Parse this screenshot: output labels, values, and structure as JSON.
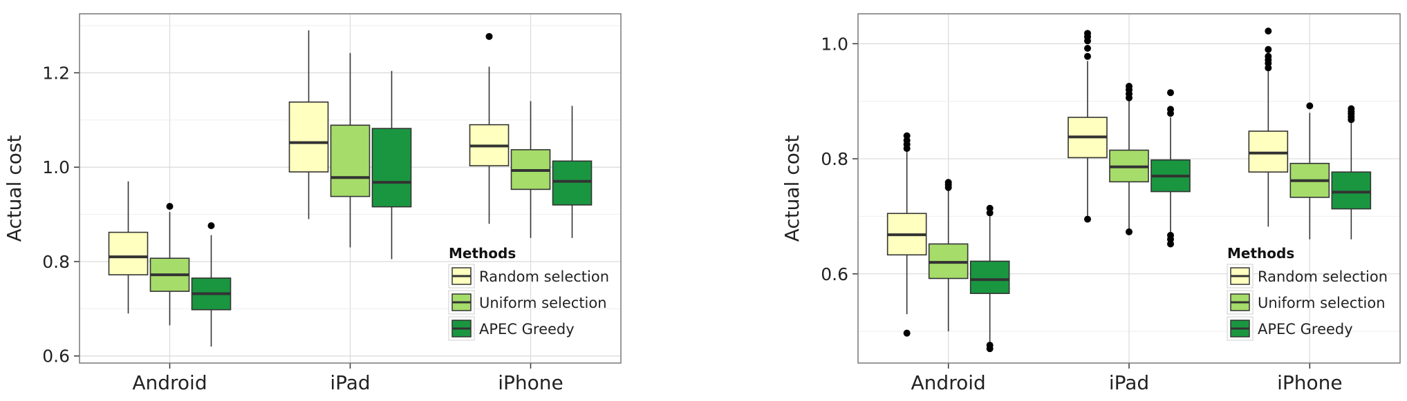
{
  "chart_data": [
    {
      "type": "boxplot",
      "ylabel": "Actual cost",
      "categories": [
        "Android",
        "iPad",
        "iPhone"
      ],
      "yticks": [
        0.6,
        0.8,
        1.0,
        1.2
      ],
      "ytick_labels": [
        "0.6",
        "0.8",
        "1.0",
        "1.2"
      ],
      "ylim": [
        0.585,
        1.325
      ],
      "grid": true,
      "legend": {
        "title": "Methods",
        "placement": "bottom-right"
      },
      "series": [
        {
          "name": "Random selection",
          "color": "#ffffbf",
          "boxes": [
            {
              "whisker_low": 0.69,
              "q1": 0.772,
              "median": 0.81,
              "q3": 0.862,
              "whisker_high": 0.97,
              "outliers": []
            },
            {
              "whisker_low": 0.89,
              "q1": 0.99,
              "median": 1.052,
              "q3": 1.138,
              "whisker_high": 1.29,
              "outliers": []
            },
            {
              "whisker_low": 0.88,
              "q1": 1.003,
              "median": 1.045,
              "q3": 1.09,
              "whisker_high": 1.213,
              "outliers": [
                1.277
              ]
            }
          ]
        },
        {
          "name": "Uniform selection",
          "color": "#a6dc6a",
          "boxes": [
            {
              "whisker_low": 0.665,
              "q1": 0.737,
              "median": 0.772,
              "q3": 0.807,
              "whisker_high": 0.905,
              "outliers": [
                0.917
              ]
            },
            {
              "whisker_low": 0.83,
              "q1": 0.938,
              "median": 0.978,
              "q3": 1.089,
              "whisker_high": 1.242,
              "outliers": []
            },
            {
              "whisker_low": 0.85,
              "q1": 0.953,
              "median": 0.993,
              "q3": 1.037,
              "whisker_high": 1.14,
              "outliers": []
            }
          ]
        },
        {
          "name": "APEC Greedy",
          "color": "#1a9641",
          "boxes": [
            {
              "whisker_low": 0.62,
              "q1": 0.698,
              "median": 0.732,
              "q3": 0.765,
              "whisker_high": 0.856,
              "outliers": [
                0.876
              ]
            },
            {
              "whisker_low": 0.805,
              "q1": 0.916,
              "median": 0.968,
              "q3": 1.082,
              "whisker_high": 1.204,
              "outliers": []
            },
            {
              "whisker_low": 0.85,
              "q1": 0.92,
              "median": 0.97,
              "q3": 1.013,
              "whisker_high": 1.13,
              "outliers": []
            }
          ]
        }
      ]
    },
    {
      "type": "boxplot",
      "ylabel": "Actual cost",
      "categories": [
        "Android",
        "iPad",
        "iPhone"
      ],
      "yticks": [
        0.6,
        0.8,
        1.0
      ],
      "ytick_labels": [
        "0.6",
        "0.8",
        "1.0"
      ],
      "ylim": [
        0.445,
        1.052
      ],
      "grid": true,
      "legend": {
        "title": "Methods",
        "placement": "bottom-right"
      },
      "series": [
        {
          "name": "Random selection",
          "color": "#ffffbf",
          "boxes": [
            {
              "whisker_low": 0.53,
              "q1": 0.633,
              "median": 0.668,
              "q3": 0.705,
              "whisker_high": 0.812,
              "outliers": [
                0.497,
                0.818,
                0.825,
                0.832,
                0.84
              ]
            },
            {
              "whisker_low": 0.695,
              "q1": 0.802,
              "median": 0.838,
              "q3": 0.872,
              "whisker_high": 0.97,
              "outliers": [
                0.695,
                0.978,
                0.992,
                1.005,
                1.012,
                1.018
              ]
            },
            {
              "whisker_low": 0.682,
              "q1": 0.777,
              "median": 0.81,
              "q3": 0.848,
              "whisker_high": 0.952,
              "outliers": [
                0.958,
                0.966,
                0.972,
                0.978,
                0.99,
                1.022
              ]
            }
          ]
        },
        {
          "name": "Uniform selection",
          "color": "#a6dc6a",
          "boxes": [
            {
              "whisker_low": 0.5,
              "q1": 0.592,
              "median": 0.62,
              "q3": 0.652,
              "whisker_high": 0.745,
              "outliers": [
                0.75,
                0.755,
                0.759
              ]
            },
            {
              "whisker_low": 0.672,
              "q1": 0.76,
              "median": 0.786,
              "q3": 0.815,
              "whisker_high": 0.9,
              "outliers": [
                0.673,
                0.906,
                0.913,
                0.92,
                0.926
              ]
            },
            {
              "whisker_low": 0.66,
              "q1": 0.733,
              "median": 0.762,
              "q3": 0.792,
              "whisker_high": 0.88,
              "outliers": [
                0.892
              ]
            }
          ]
        },
        {
          "name": "APEC Greedy",
          "color": "#1a9641",
          "boxes": [
            {
              "whisker_low": 0.482,
              "q1": 0.566,
              "median": 0.59,
              "q3": 0.622,
              "whisker_high": 0.7,
              "outliers": [
                0.47,
                0.476,
                0.706,
                0.714
              ]
            },
            {
              "whisker_low": 0.672,
              "q1": 0.743,
              "median": 0.77,
              "q3": 0.798,
              "whisker_high": 0.872,
              "outliers": [
                0.652,
                0.66,
                0.667,
                0.879,
                0.886,
                0.915
              ]
            },
            {
              "whisker_low": 0.66,
              "q1": 0.713,
              "median": 0.742,
              "q3": 0.777,
              "whisker_high": 0.862,
              "outliers": [
                0.868,
                0.873,
                0.878,
                0.882,
                0.887
              ]
            }
          ]
        }
      ]
    }
  ]
}
